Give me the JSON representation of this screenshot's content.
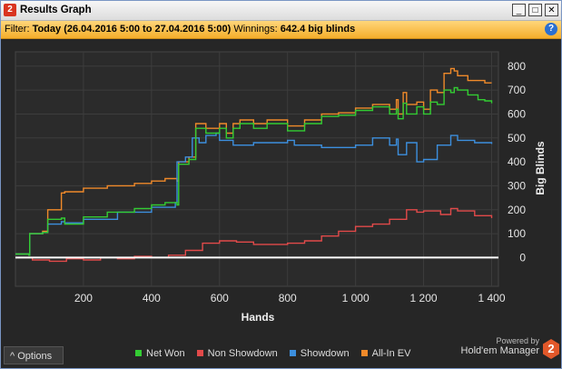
{
  "window": {
    "app_icon": "2",
    "title": "Results Graph",
    "minimize": "_",
    "maximize": "□",
    "close": "✕"
  },
  "filter": {
    "prefix": "Filter:",
    "range": "Today (26.04.2016 5:00 to 27.04.2016 5:00)",
    "winnings_label": "Winnings:",
    "winnings_value": "642.4 big blinds",
    "help": "?"
  },
  "colors": {
    "net_won": "#33cc33",
    "non_showdown": "#e24a4a",
    "showdown": "#3c8fde",
    "all_in_ev": "#f08a2a",
    "zero_line": "#ffffff"
  },
  "chart_data": {
    "type": "line",
    "xlabel": "Hands",
    "ylabel": "Big Blinds",
    "xlim": [
      0,
      1420
    ],
    "ylim": [
      -120,
      860
    ],
    "x_ticks": [
      200,
      400,
      600,
      800,
      1000,
      1200,
      1400
    ],
    "x_tick_labels": [
      "200",
      "400",
      "600",
      "800",
      "1 000",
      "1 200",
      "1 400"
    ],
    "y_ticks": [
      0,
      100,
      200,
      300,
      400,
      500,
      600,
      700,
      800
    ],
    "y_tick_labels": [
      "0",
      "100",
      "200",
      "300",
      "400",
      "500",
      "600",
      "700",
      "800"
    ],
    "grid": true,
    "series": [
      {
        "name": "Net Won",
        "color_key": "net_won",
        "x": [
          0,
          40,
          42,
          80,
          95,
          135,
          145,
          200,
          270,
          350,
          400,
          440,
          475,
          480,
          510,
          530,
          560,
          600,
          620,
          640,
          660,
          700,
          740,
          800,
          850,
          900,
          950,
          1000,
          1050,
          1100,
          1120,
          1125,
          1140,
          1150,
          1180,
          1200,
          1220,
          1240,
          1260,
          1280,
          1290,
          1300,
          1330,
          1360,
          1380,
          1400
        ],
        "y": [
          15,
          10,
          100,
          105,
          160,
          165,
          140,
          170,
          190,
          205,
          220,
          230,
          220,
          390,
          410,
          540,
          520,
          540,
          500,
          540,
          560,
          540,
          560,
          530,
          560,
          590,
          595,
          615,
          630,
          600,
          620,
          580,
          645,
          600,
          630,
          600,
          650,
          640,
          700,
          690,
          710,
          700,
          680,
          660,
          655,
          645
        ]
      },
      {
        "name": "Non Showdown",
        "color_key": "non_showdown",
        "x": [
          0,
          50,
          100,
          150,
          200,
          250,
          300,
          350,
          400,
          450,
          500,
          550,
          600,
          650,
          700,
          750,
          800,
          850,
          900,
          950,
          1000,
          1050,
          1100,
          1150,
          1180,
          1200,
          1250,
          1280,
          1300,
          1350,
          1400
        ],
        "y": [
          0,
          -10,
          -15,
          -5,
          -10,
          0,
          -5,
          5,
          0,
          10,
          30,
          60,
          70,
          65,
          55,
          55,
          60,
          70,
          90,
          110,
          130,
          140,
          160,
          200,
          190,
          195,
          180,
          205,
          195,
          175,
          165
        ]
      },
      {
        "name": "Showdown",
        "color_key": "showdown",
        "x": [
          0,
          40,
          42,
          80,
          95,
          135,
          145,
          200,
          300,
          400,
          470,
          475,
          500,
          520,
          540,
          560,
          590,
          600,
          640,
          700,
          800,
          820,
          900,
          1000,
          1050,
          1100,
          1120,
          1125,
          1150,
          1180,
          1200,
          1240,
          1280,
          1300,
          1350,
          1400
        ],
        "y": [
          15,
          10,
          100,
          105,
          140,
          150,
          145,
          160,
          190,
          210,
          230,
          400,
          420,
          500,
          480,
          510,
          520,
          490,
          470,
          480,
          490,
          470,
          460,
          470,
          500,
          470,
          495,
          430,
          480,
          400,
          410,
          470,
          510,
          490,
          480,
          475
        ]
      },
      {
        "name": "All-In EV",
        "color_key": "all_in_ev",
        "x": [
          0,
          40,
          42,
          80,
          95,
          135,
          145,
          200,
          270,
          350,
          400,
          440,
          475,
          480,
          510,
          530,
          560,
          600,
          620,
          640,
          660,
          700,
          740,
          800,
          850,
          900,
          950,
          1000,
          1050,
          1100,
          1120,
          1125,
          1140,
          1150,
          1180,
          1200,
          1220,
          1240,
          1260,
          1280,
          1290,
          1300,
          1330,
          1360,
          1380,
          1400
        ],
        "y": [
          15,
          10,
          100,
          110,
          200,
          270,
          275,
          290,
          300,
          310,
          320,
          330,
          320,
          400,
          420,
          560,
          540,
          560,
          520,
          560,
          575,
          560,
          575,
          550,
          575,
          600,
          605,
          625,
          640,
          620,
          660,
          600,
          690,
          640,
          650,
          620,
          700,
          690,
          770,
          790,
          780,
          760,
          740,
          740,
          730,
          730
        ]
      }
    ]
  },
  "footer": {
    "options_label": "Options",
    "options_chevron": "^",
    "powered_by": "Powered by",
    "brand": "Hold'em Manager",
    "logo_digit": "2"
  }
}
